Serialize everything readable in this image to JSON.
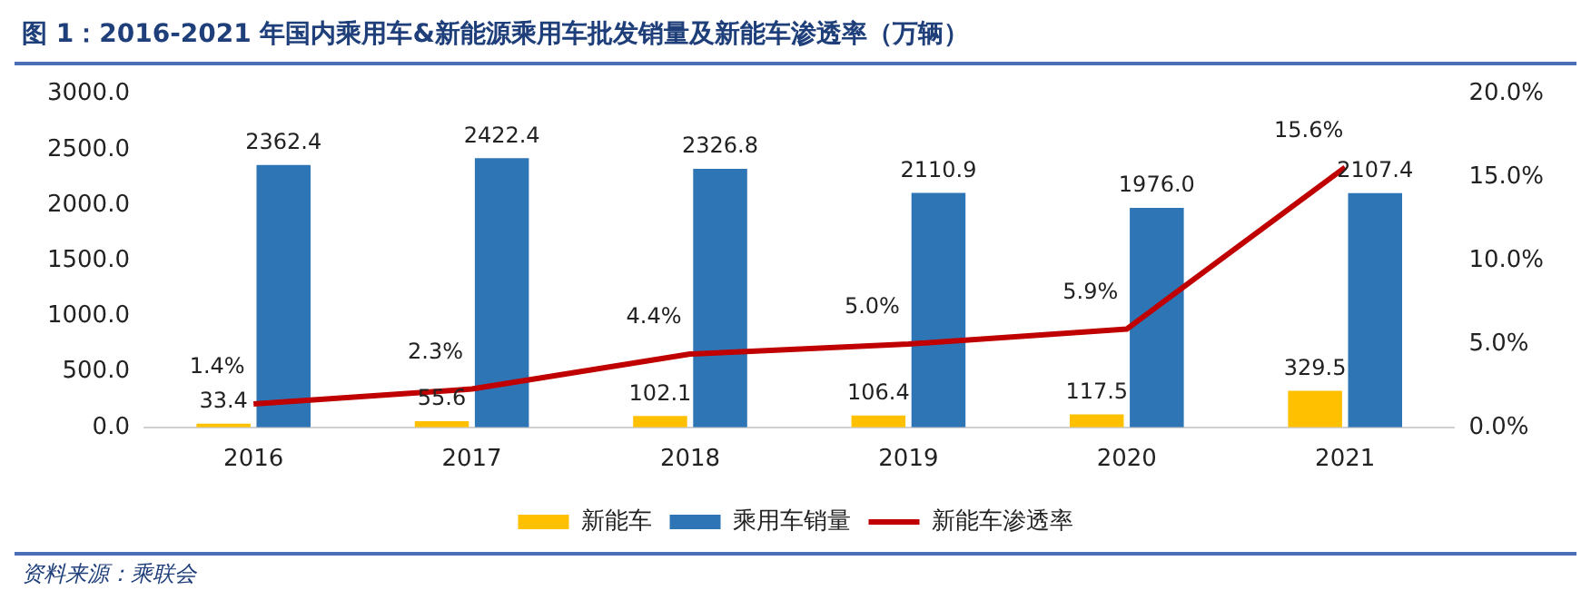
{
  "chart_data": {
    "type": "bar",
    "title": "图 1：2016-2021 年国内乘用车&新能源乘用车批发销量及新能车渗透率（万辆）",
    "categories": [
      "2016",
      "2017",
      "2018",
      "2019",
      "2020",
      "2021"
    ],
    "series": [
      {
        "name": "新能车",
        "color": "#ffc000",
        "values": [
          33.4,
          55.6,
          102.1,
          106.4,
          117.5,
          329.5
        ],
        "value_labels": [
          "33.4",
          "55.6",
          "102.1",
          "106.4",
          "117.5",
          "329.5"
        ]
      },
      {
        "name": "乘用车销量",
        "color": "#2e75b6",
        "values": [
          2362.4,
          2422.4,
          2326.8,
          2110.9,
          1976.0,
          2107.4
        ],
        "value_labels": [
          "2362.4",
          "2422.4",
          "2326.8",
          "2110.9",
          "1976.0",
          "2107.4"
        ]
      },
      {
        "name": "新能车渗透率",
        "type": "line",
        "axis": "y2",
        "color": "#c00000",
        "values": [
          1.4,
          2.3,
          4.4,
          5.0,
          5.9,
          15.6
        ],
        "value_labels": [
          "1.4%",
          "2.3%",
          "4.4%",
          "5.0%",
          "5.9%",
          "15.6%"
        ]
      }
    ],
    "ylim": [
      0,
      3000
    ],
    "yticks": [
      {
        "value": 0,
        "label": "0.0"
      },
      {
        "value": 500,
        "label": "500.0"
      },
      {
        "value": 1000,
        "label": "1000.0"
      },
      {
        "value": 1500,
        "label": "1500.0"
      },
      {
        "value": 2000,
        "label": "2000.0"
      },
      {
        "value": 2500,
        "label": "2500.0"
      },
      {
        "value": 3000,
        "label": "3000.0"
      }
    ],
    "y2lim": [
      0,
      20
    ],
    "y2ticks": [
      {
        "value": 0,
        "label": "0.0%"
      },
      {
        "value": 5,
        "label": "5.0%"
      },
      {
        "value": 10,
        "label": "10.0%"
      },
      {
        "value": 15,
        "label": "15.0%"
      },
      {
        "value": 20,
        "label": "20.0%"
      }
    ],
    "grid": false,
    "legend": "bottom",
    "marker": "none",
    "line_style": "solid",
    "annotations": [
      "资料来源：乘联会"
    ]
  }
}
